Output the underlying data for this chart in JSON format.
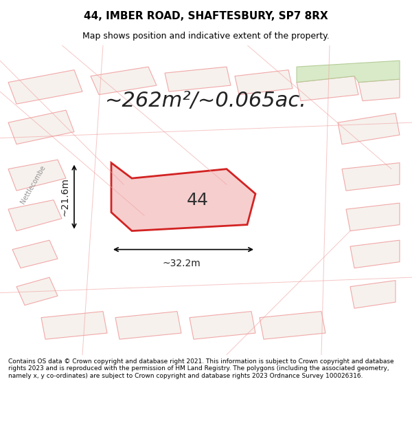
{
  "title": "44, IMBER ROAD, SHAFTESBURY, SP7 8RX",
  "subtitle": "Map shows position and indicative extent of the property.",
  "area_text": "~262m²/~0.065ac.",
  "label_44": "44",
  "dim_width": "~32.2m",
  "dim_height": "~21.6m",
  "footer": "Contains OS data © Crown copyright and database right 2021. This information is subject to Crown copyright and database rights 2023 and is reproduced with the permission of HM Land Registry. The polygons (including the associated geometry, namely x, y co-ordinates) are subject to Crown copyright and database rights 2023 Ordnance Survey 100026316.",
  "bg_color": "#f0f0f0",
  "map_bg": "#f5f0eb",
  "plot_fill": "#f5c6c6",
  "plot_edge": "#cc0000",
  "other_plot_edge": "#f0a0a0",
  "other_plot_fill": "#f5f0eb",
  "green_fill": "#d4e8c2",
  "title_fontsize": 11,
  "subtitle_fontsize": 9,
  "area_fontsize": 22,
  "label_fontsize": 18,
  "dim_fontsize": 10,
  "footer_fontsize": 6.5
}
